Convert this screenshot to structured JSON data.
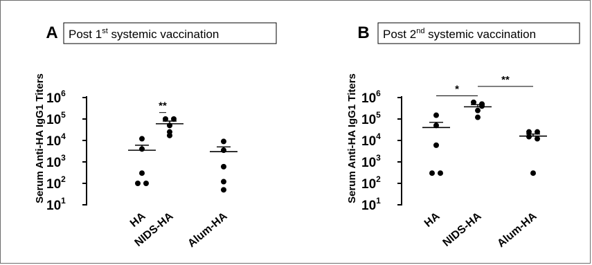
{
  "chart_data": [
    {
      "type": "scatter",
      "panel": "A",
      "title": "Post 1st systemic vaccination",
      "title_parts": {
        "pre": "Post 1",
        "sup": "st",
        "post": " systemic vaccination"
      },
      "ylabel": "Serum Anti-HA IgG1 Titers",
      "y_scale": "log10",
      "ylim": [
        10,
        1000000
      ],
      "yticks": [
        {
          "base": "10",
          "exp": "1"
        },
        {
          "base": "10",
          "exp": "2"
        },
        {
          "base": "10",
          "exp": "3"
        },
        {
          "base": "10",
          "exp": "4"
        },
        {
          "base": "10",
          "exp": "5"
        },
        {
          "base": "10",
          "exp": "6"
        }
      ],
      "categories": [
        "HA",
        "NIDS-HA",
        "Alum-HA"
      ],
      "points": [
        [
          12000,
          4000,
          300,
          100,
          100
        ],
        [
          100000,
          100000,
          50000,
          25000,
          17000
        ],
        [
          9000,
          3500,
          600,
          120,
          50
        ]
      ],
      "mean": [
        3500,
        60000,
        3000
      ],
      "sem_upper": [
        6000,
        80000,
        5000
      ],
      "comparisons": [
        {
          "groups": [
            "HA",
            "NIDS-HA"
          ],
          "label": "**",
          "y": 200000
        }
      ]
    },
    {
      "type": "scatter",
      "panel": "B",
      "title": "Post 2nd systemic vaccination",
      "title_parts": {
        "pre": "Post 2",
        "sup": "nd",
        "post": " systemic vaccination"
      },
      "ylabel": "Serum Anti-HA IgG1 Titers",
      "y_scale": "log10",
      "ylim": [
        10,
        1000000
      ],
      "yticks": [
        {
          "base": "10",
          "exp": "1"
        },
        {
          "base": "10",
          "exp": "2"
        },
        {
          "base": "10",
          "exp": "3"
        },
        {
          "base": "10",
          "exp": "4"
        },
        {
          "base": "10",
          "exp": "5"
        },
        {
          "base": "10",
          "exp": "6"
        }
      ],
      "categories": [
        "HA",
        "NIDS-HA",
        "Alum-HA"
      ],
      "points": [
        [
          150000,
          50000,
          6000,
          300,
          300
        ],
        [
          600000,
          500000,
          400000,
          250000,
          120000
        ],
        [
          25000,
          25000,
          15000,
          12000,
          300
        ]
      ],
      "mean": [
        40000,
        370000,
        16000
      ],
      "sem_upper": [
        70000,
        470000,
        20000
      ],
      "comparisons": [
        {
          "groups": [
            "HA",
            "NIDS-HA"
          ],
          "label": "*",
          "y": 1200000
        },
        {
          "groups": [
            "NIDS-HA",
            "Alum-HA"
          ],
          "label": "**",
          "y": 3300000
        }
      ]
    }
  ]
}
